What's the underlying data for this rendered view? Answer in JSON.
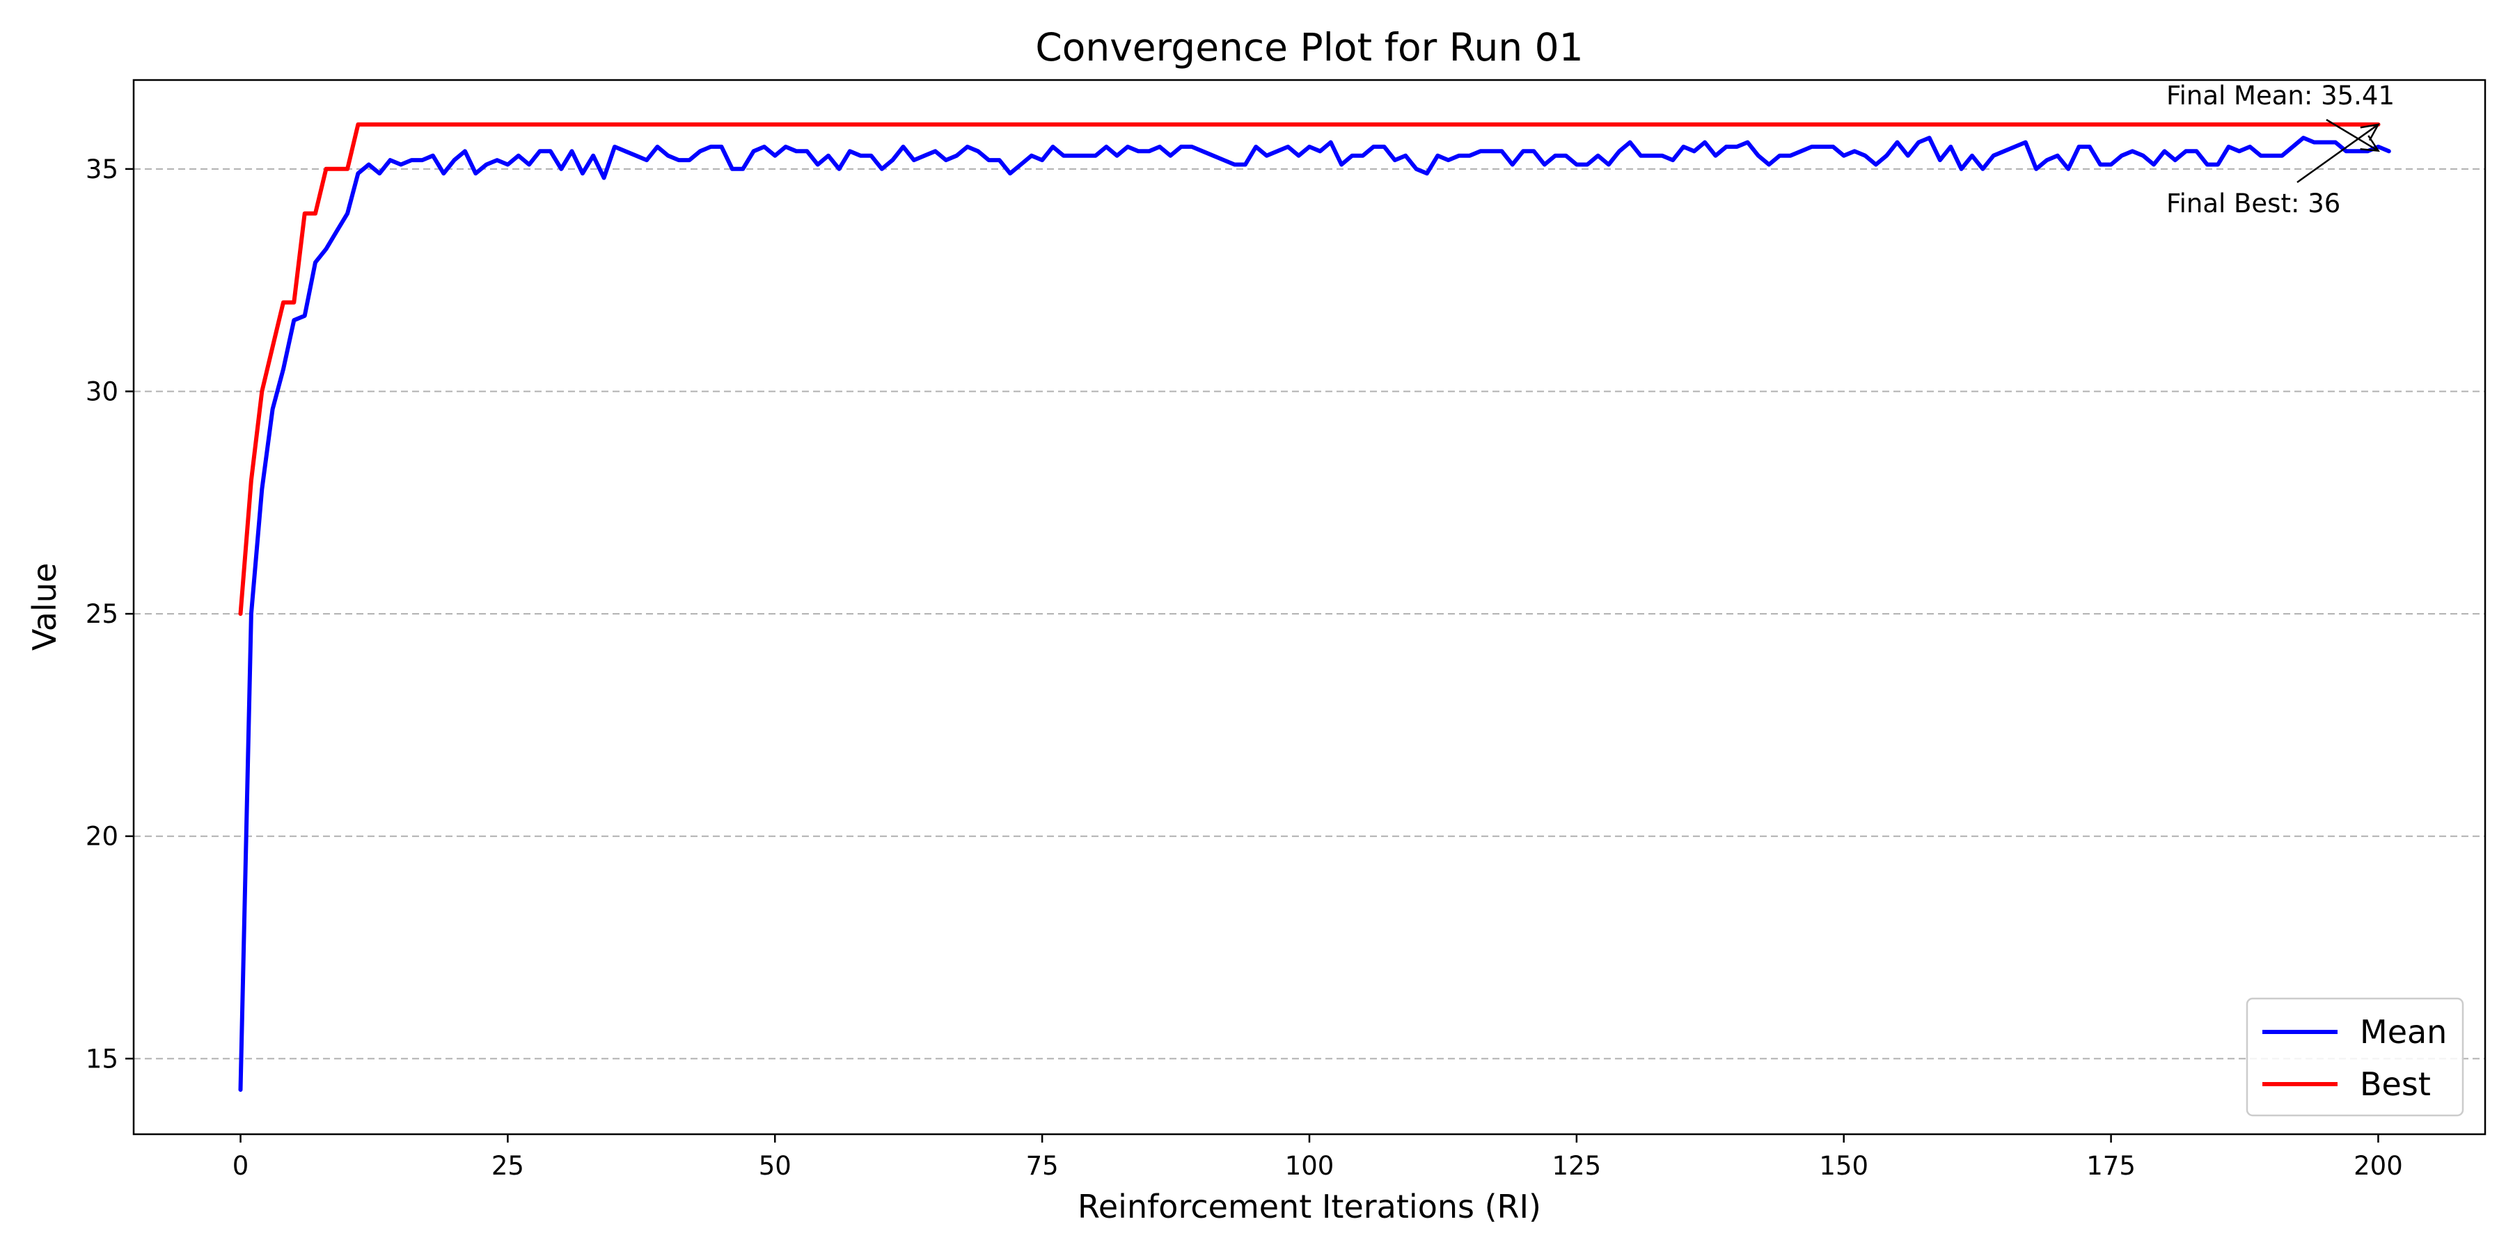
{
  "chart_data": {
    "type": "line",
    "title": "Convergence Plot for Run 01",
    "xlabel": "Reinforcement Iterations (RI)",
    "ylabel": "Value",
    "xlim": [
      -10,
      210
    ],
    "ylim": [
      13.3,
      37.0
    ],
    "xticks": [
      0,
      25,
      50,
      75,
      100,
      125,
      150,
      175,
      200
    ],
    "yticks": [
      15,
      20,
      25,
      30,
      35
    ],
    "grid": "horizontal dashed",
    "legend_position": "bottom-right",
    "series": [
      {
        "name": "Mean",
        "color": "#0000ff",
        "x_start": 0,
        "x_step": 1,
        "values": [
          14.3,
          25.0,
          27.8,
          29.6,
          30.5,
          31.6,
          31.7,
          32.9,
          33.2,
          33.6,
          34.0,
          34.9,
          35.1,
          34.9,
          35.2,
          35.1,
          35.2,
          35.2,
          35.3,
          34.9,
          35.2,
          35.4,
          34.9,
          35.1,
          35.2,
          35.1,
          35.3,
          35.1,
          35.4,
          35.4,
          35.0,
          35.4,
          34.9,
          35.3,
          34.8,
          35.5,
          35.4,
          35.3,
          35.2,
          35.5,
          35.3,
          35.2,
          35.2,
          35.4,
          35.5,
          35.5,
          35.0,
          35.0,
          35.4,
          35.5,
          35.3,
          35.5,
          35.4,
          35.4,
          35.1,
          35.3,
          35.0,
          35.4,
          35.3,
          35.3,
          35.0,
          35.2,
          35.5,
          35.2,
          35.3,
          35.4,
          35.2,
          35.3,
          35.5,
          35.4,
          35.2,
          35.2,
          34.9,
          35.1,
          35.3,
          35.2,
          35.5,
          35.3,
          35.3,
          35.3,
          35.3,
          35.5,
          35.3,
          35.5,
          35.4,
          35.4,
          35.5,
          35.3,
          35.5,
          35.5,
          35.4,
          35.3,
          35.2,
          35.1,
          35.1,
          35.5,
          35.3,
          35.4,
          35.5,
          35.3,
          35.5,
          35.4,
          35.6,
          35.1,
          35.3,
          35.3,
          35.5,
          35.5,
          35.2,
          35.3,
          35.0,
          34.9,
          35.3,
          35.2,
          35.3,
          35.3,
          35.4,
          35.4,
          35.4,
          35.1,
          35.4,
          35.4,
          35.1,
          35.3,
          35.3,
          35.1,
          35.1,
          35.3,
          35.1,
          35.4,
          35.6,
          35.3,
          35.3,
          35.3,
          35.2,
          35.5,
          35.4,
          35.6,
          35.3,
          35.5,
          35.5,
          35.6,
          35.3,
          35.1,
          35.3,
          35.3,
          35.4,
          35.5,
          35.5,
          35.5,
          35.3,
          35.4,
          35.3,
          35.1,
          35.3,
          35.6,
          35.3,
          35.6,
          35.7,
          35.2,
          35.5,
          35.0,
          35.3,
          35.0,
          35.3,
          35.4,
          35.5,
          35.6,
          35.0,
          35.2,
          35.3,
          35.0,
          35.5,
          35.5,
          35.1,
          35.1,
          35.3,
          35.4,
          35.3,
          35.1,
          35.4,
          35.2,
          35.4,
          35.4,
          35.1,
          35.1,
          35.5,
          35.4,
          35.5,
          35.3,
          35.3,
          35.3,
          35.5,
          35.7,
          35.6,
          35.6,
          35.6,
          35.4,
          35.4,
          35.4,
          35.5,
          35.4
        ]
      },
      {
        "name": "Best",
        "color": "#ff0000",
        "x_start": 0,
        "x_step": 1,
        "values": [
          25,
          28,
          30,
          31,
          32,
          32,
          34,
          34,
          35,
          35,
          35,
          36,
          36,
          36,
          36,
          36,
          36,
          36,
          36,
          36,
          36,
          36,
          36,
          36,
          36,
          36,
          36,
          36,
          36,
          36,
          36,
          36,
          36,
          36,
          36,
          36,
          36,
          36,
          36,
          36,
          36,
          36,
          36,
          36,
          36,
          36,
          36,
          36,
          36,
          36,
          36,
          36,
          36,
          36,
          36,
          36,
          36,
          36,
          36,
          36,
          36,
          36,
          36,
          36,
          36,
          36,
          36,
          36,
          36,
          36,
          36,
          36,
          36,
          36,
          36,
          36,
          36,
          36,
          36,
          36,
          36,
          36,
          36,
          36,
          36,
          36,
          36,
          36,
          36,
          36,
          36,
          36,
          36,
          36,
          36,
          36,
          36,
          36,
          36,
          36,
          36,
          36,
          36,
          36,
          36,
          36,
          36,
          36,
          36,
          36,
          36,
          36,
          36,
          36,
          36,
          36,
          36,
          36,
          36,
          36,
          36,
          36,
          36,
          36,
          36,
          36,
          36,
          36,
          36,
          36,
          36,
          36,
          36,
          36,
          36,
          36,
          36,
          36,
          36,
          36,
          36,
          36,
          36,
          36,
          36,
          36,
          36,
          36,
          36,
          36,
          36,
          36,
          36,
          36,
          36,
          36,
          36,
          36,
          36,
          36,
          36,
          36,
          36,
          36,
          36,
          36,
          36,
          36,
          36,
          36,
          36,
          36,
          36,
          36,
          36,
          36,
          36,
          36,
          36,
          36,
          36,
          36,
          36,
          36,
          36,
          36,
          36,
          36,
          36,
          36,
          36,
          36,
          36,
          36,
          36,
          36,
          36,
          36,
          36,
          36,
          36
        ]
      }
    ],
    "annotations": [
      {
        "text": "Final Mean: 35.41",
        "target_x": 200,
        "target_y": 35.41
      },
      {
        "text": "Final Best: 36",
        "target_x": 200,
        "target_y": 36
      }
    ]
  }
}
